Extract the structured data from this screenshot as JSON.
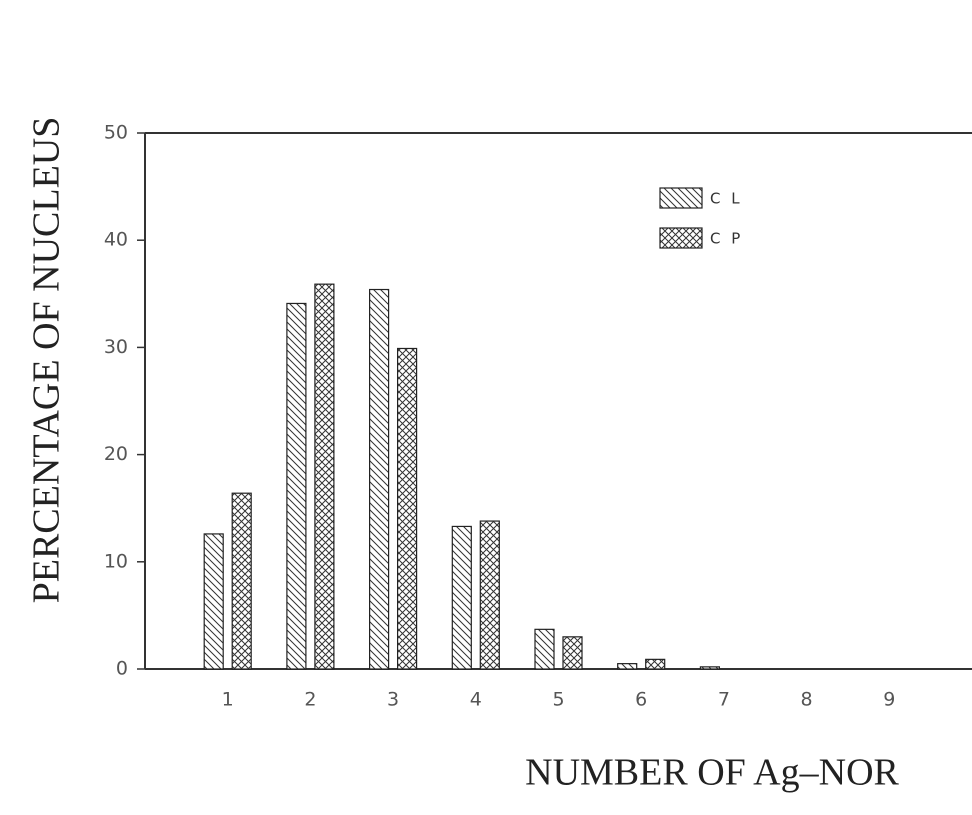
{
  "chart_data": {
    "type": "bar",
    "y_label": "PERCENTAGE OF NUCLEUS",
    "x_label": "NUMBER OF Ag–NOR",
    "categories": [
      "1",
      "2",
      "3",
      "4",
      "5",
      "6",
      "7",
      "8",
      "9"
    ],
    "series": [
      {
        "name": "C L",
        "color": "#222222",
        "hatch": "diagonal",
        "values": [
          12.6,
          34.1,
          35.4,
          13.3,
          3.7,
          0.5,
          0.2,
          0,
          0
        ]
      },
      {
        "name": "C P",
        "color": "#222222",
        "hatch": "cross",
        "values": [
          16.4,
          35.9,
          29.9,
          13.8,
          3.0,
          0.9,
          0,
          0,
          0
        ]
      }
    ],
    "ylim": [
      0,
      50
    ],
    "yticks": [
      0,
      10,
      20,
      30,
      40,
      50
    ]
  }
}
